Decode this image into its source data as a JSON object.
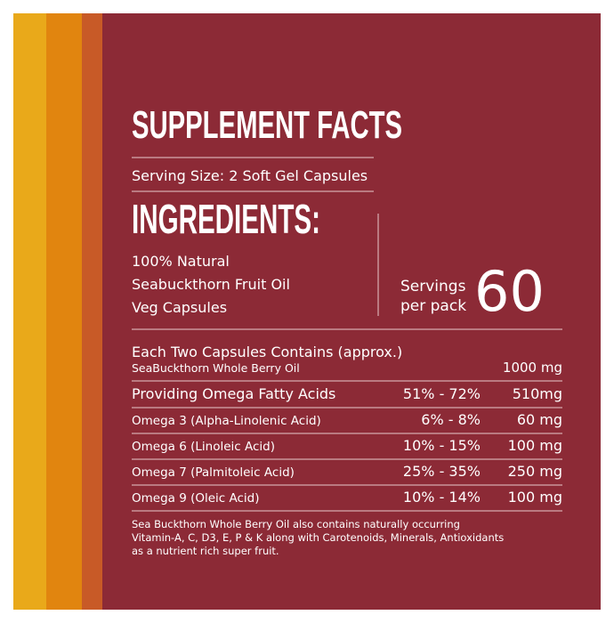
{
  "header": {
    "title": "SUPPLEMENT FACTS",
    "serving_size": "Serving Size: 2 Soft Gel Capsules"
  },
  "ingredients": {
    "heading": "INGREDIENTS:",
    "items": [
      "100% Natural",
      "Seabuckthorn Fruit Oil",
      "Veg Capsules"
    ]
  },
  "servings": {
    "label_lines": [
      "Servings",
      "per pack"
    ],
    "count": "60"
  },
  "table": {
    "heading": "Each Two Capsules Contains (approx.)",
    "first_row": {
      "name": "SeaBuckthorn Whole Berry Oil",
      "amount": "1000 mg"
    },
    "rows": [
      {
        "name": "Providing Omega Fatty Acids",
        "range": "51% - 72%",
        "amount": "510mg"
      },
      {
        "name": "Omega 3  (Alpha-Linolenic Acid)",
        "range": "6% - 8%",
        "amount": "60 mg"
      },
      {
        "name": "Omega 6  (Linoleic Acid)",
        "range": "10% - 15%",
        "amount": "100 mg"
      },
      {
        "name": "Omega 7  (Palmitoleic Acid)",
        "range": "25% - 35%",
        "amount": "250 mg"
      },
      {
        "name": "Omega 9  (Oleic Acid)",
        "range": "10% - 14%",
        "amount": "100 mg"
      }
    ]
  },
  "footnote": [
    "Sea Buckthorn Whole Berry Oil also contains naturally occurring",
    "Vitamin-A, C, D3, E, P & K    along with Carotenoids, Minerals, Antioxidants",
    "as a nutrient rich super fruit."
  ]
}
